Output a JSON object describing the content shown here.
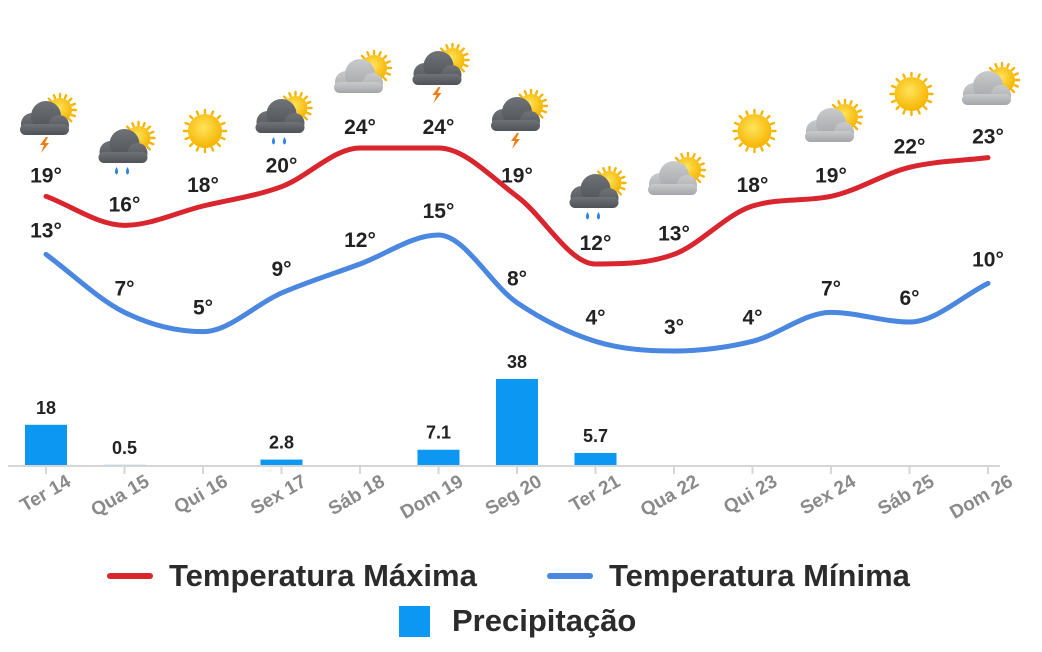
{
  "chart_data": {
    "type": "line",
    "categories": [
      "Ter 14",
      "Qua 15",
      "Qui 16",
      "Sex 17",
      "Sáb 18",
      "Dom 19",
      "Seg 20",
      "Ter 21",
      "Qua 22",
      "Qui 23",
      "Sex 24",
      "Sáb 25",
      "Dom 26"
    ],
    "series": [
      {
        "name": "Temperatura Máxima",
        "type": "line",
        "color": "#d9252e",
        "values": [
          19,
          16,
          18,
          20,
          24,
          24,
          19,
          12,
          13,
          18,
          19,
          22,
          23
        ],
        "labels": [
          "19°",
          "16°",
          "18°",
          "20°",
          "24°",
          "24°",
          "19°",
          "12°",
          "13°",
          "18°",
          "19°",
          "22°",
          "23°"
        ]
      },
      {
        "name": "Temperatura Mínima",
        "type": "line",
        "color": "#4a87e0",
        "values": [
          13,
          7,
          5,
          9,
          12,
          15,
          8,
          4,
          3,
          4,
          7,
          6,
          10
        ],
        "labels": [
          "13°",
          "7°",
          "5°",
          "9°",
          "12°",
          "15°",
          "8°",
          "4°",
          "3°",
          "4°",
          "7°",
          "6°",
          "10°"
        ]
      },
      {
        "name": "Precipitação",
        "type": "bar",
        "color": "#0b97f2",
        "values": [
          18,
          0.5,
          0,
          2.8,
          0,
          7.1,
          38,
          5.7,
          0,
          0,
          0,
          0,
          0
        ],
        "labels": [
          "18",
          "0.5",
          "",
          "2.8",
          "",
          "7.1",
          "38",
          "5.7",
          "",
          "",
          "",
          "",
          ""
        ]
      }
    ],
    "icons": [
      "storm-icon",
      "rain-icon",
      "sun-icon",
      "rain-icon",
      "partly-cloudy-icon",
      "storm-icon",
      "storm-icon",
      "rain-icon",
      "partly-cloudy-icon",
      "sun-icon",
      "partly-cloudy-icon",
      "sun-icon",
      "partly-cloudy-icon"
    ],
    "xlabel": "",
    "ylabel": "",
    "grid": false,
    "legend_position": "bottom"
  }
}
